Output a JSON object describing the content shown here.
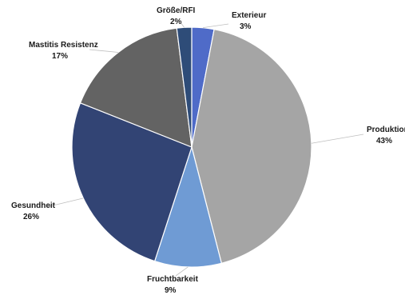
{
  "chart_data": {
    "type": "pie",
    "title": "",
    "start_angle_deg": 0,
    "direction": "clockwise",
    "slices": [
      {
        "name": "Exterieur",
        "value": 3,
        "label": "3%",
        "color": "#4f6bc8"
      },
      {
        "name": "Produktion",
        "value": 43,
        "label": "43%",
        "color": "#a5a5a5"
      },
      {
        "name": "Fruchtbarkeit",
        "value": 9,
        "label": "9%",
        "color": "#6f9bd4"
      },
      {
        "name": "Gesundheit",
        "value": 26,
        "label": "26%",
        "color": "#324474"
      },
      {
        "name": "Mastitis Resistenz",
        "value": 17,
        "label": "17%",
        "color": "#636363"
      },
      {
        "name": "Größe/RFI",
        "value": 2,
        "label": "2%",
        "color": "#2e4c78"
      }
    ],
    "legend": "none"
  }
}
